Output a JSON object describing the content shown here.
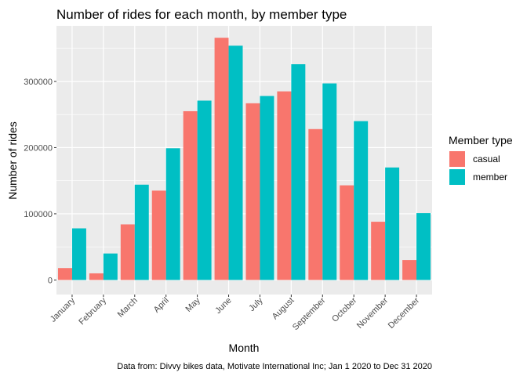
{
  "chart_data": {
    "type": "bar",
    "title": "Number of rides for each month, by member type",
    "xlabel": "Month",
    "ylabel": "Number of rides",
    "caption": "Data from: Divvy bikes data, Motivate International Inc; Jan 1 2020 to Dec 31 2020",
    "categories": [
      "January",
      "February",
      "March",
      "April",
      "May",
      "June",
      "July",
      "August",
      "September",
      "October",
      "November",
      "December"
    ],
    "series": [
      {
        "name": "casual",
        "color": "#f8766d",
        "values": [
          18000,
          10000,
          84000,
          135000,
          255000,
          366000,
          267000,
          285000,
          228000,
          143000,
          88000,
          30000
        ]
      },
      {
        "name": "member",
        "color": "#00bfc4",
        "values": [
          78000,
          40000,
          144000,
          199000,
          271000,
          354000,
          278000,
          326000,
          297000,
          240000,
          170000,
          101000
        ]
      }
    ],
    "ylim": [
      -22000,
      384000
    ],
    "yticks": [
      0,
      100000,
      200000,
      300000
    ],
    "ytick_labels": [
      "0",
      "100000",
      "200000",
      "300000"
    ],
    "grid": true,
    "panel_background": "#ebebeb",
    "legend": {
      "title": "Member type",
      "position": "right"
    }
  }
}
